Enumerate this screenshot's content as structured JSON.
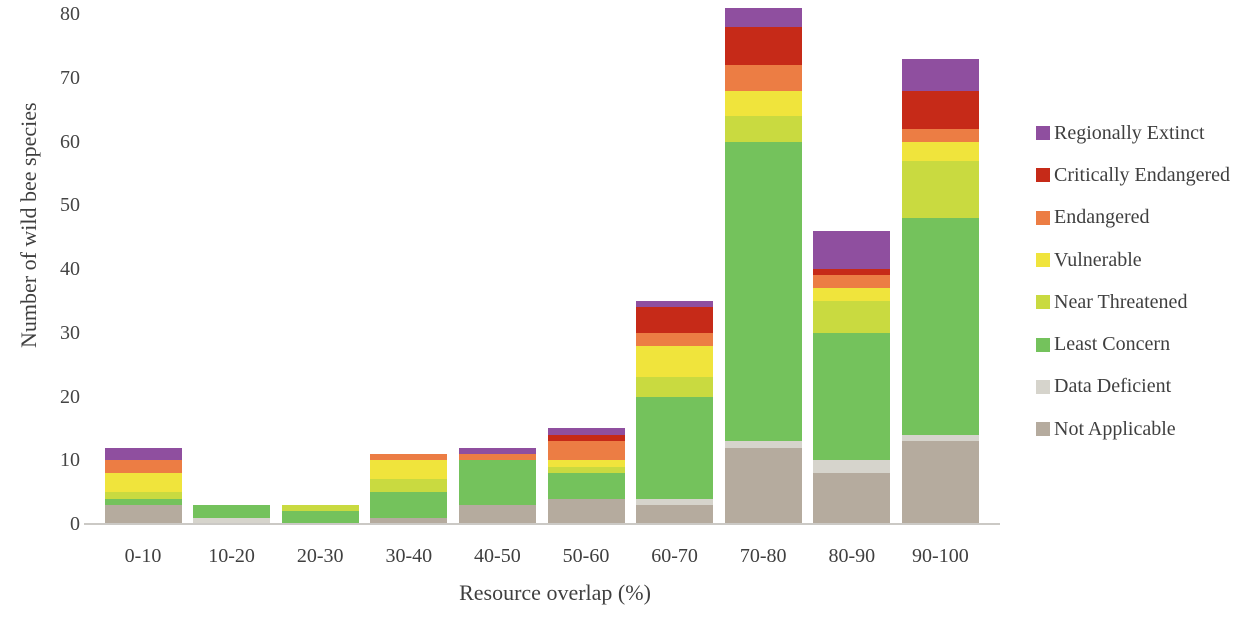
{
  "chart_data": {
    "type": "bar",
    "stacked": true,
    "title": "",
    "xlabel": "Resource overlap (%)",
    "ylabel": "Number of wild bee species",
    "ylim": [
      0,
      80
    ],
    "ytick_step": 10,
    "grid": false,
    "legend_position": "right",
    "categories": [
      "0-10",
      "10-20",
      "20-30",
      "30-40",
      "40-50",
      "50-60",
      "60-70",
      "70-80",
      "80-90",
      "90-100"
    ],
    "series": [
      {
        "name": "Not Applicable",
        "color": "#b5ab9e",
        "values": [
          3,
          0,
          0,
          1,
          3,
          4,
          3,
          12,
          8,
          13
        ]
      },
      {
        "name": "Data Deficient",
        "color": "#d6d4cc",
        "values": [
          0,
          1,
          0,
          0,
          0,
          0,
          1,
          1,
          2,
          1
        ]
      },
      {
        "name": "Least Concern",
        "color": "#74c25c",
        "values": [
          1,
          2,
          2,
          4,
          7,
          4,
          16,
          47,
          20,
          34
        ]
      },
      {
        "name": "Near Threatened",
        "color": "#c9da40",
        "values": [
          1,
          0,
          1,
          2,
          0,
          1,
          3,
          4,
          5,
          9
        ]
      },
      {
        "name": "Vulnerable",
        "color": "#f0e43c",
        "values": [
          3,
          0,
          0,
          3,
          0,
          1,
          5,
          4,
          2,
          3
        ]
      },
      {
        "name": "Endangered",
        "color": "#ec7d44",
        "values": [
          2,
          0,
          0,
          1,
          1,
          3,
          2,
          4,
          2,
          2
        ]
      },
      {
        "name": "Critically Endangered",
        "color": "#c62a18",
        "values": [
          0,
          0,
          0,
          0,
          0,
          1,
          4,
          6,
          1,
          6
        ]
      },
      {
        "name": "Regionally Extinct",
        "color": "#8f4f9f",
        "values": [
          2,
          0,
          0,
          0,
          1,
          1,
          1,
          3,
          6,
          5
        ]
      }
    ],
    "bar_totals": [
      12,
      3,
      3,
      11,
      12,
      15,
      35,
      81,
      46,
      73
    ],
    "legend_order_top_to_bottom": [
      "Regionally Extinct",
      "Critically Endangered",
      "Endangered",
      "Vulnerable",
      "Near Threatened",
      "Least Concern",
      "Data Deficient",
      "Not Applicable"
    ]
  }
}
